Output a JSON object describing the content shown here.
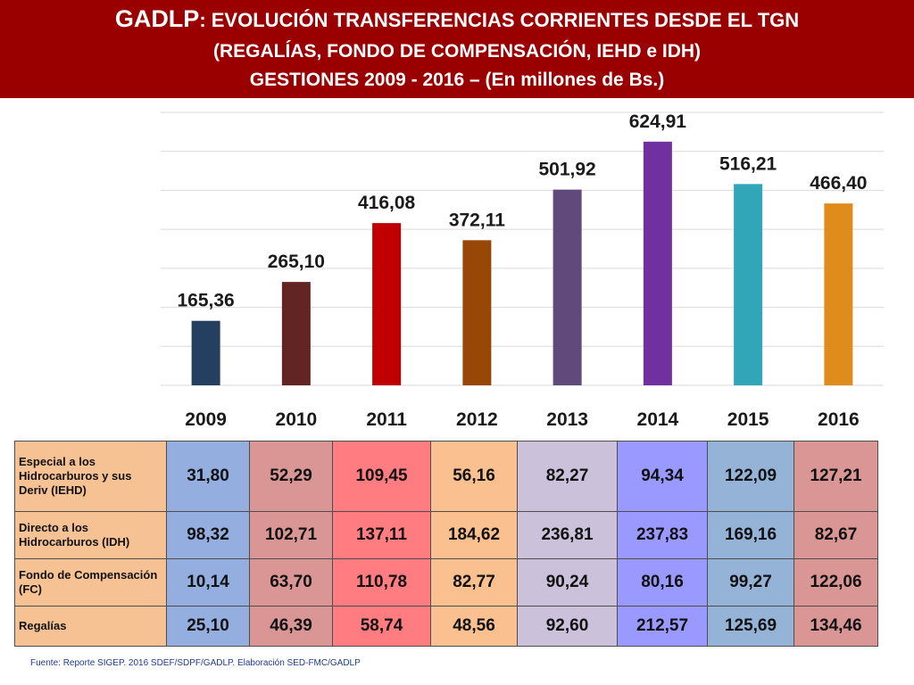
{
  "header": {
    "title_prefix": "GADLP",
    "title_rest": ": EVOLUCIÓN TRANSFERENCIAS CORRIENTES DESDE EL TGN",
    "line2": "(REGALÍAS, FONDO DE COMPENSACIÓN, IEHD e IDH)",
    "line3": "GESTIONES 2009 - 2016 – (En  millones de Bs.)",
    "background": "#9b0000"
  },
  "chart_data": {
    "type": "bar",
    "title": "",
    "xlabel": "",
    "ylabel": "",
    "categories": [
      "2009",
      "2010",
      "2011",
      "2012",
      "2013",
      "2014",
      "2015",
      "2016"
    ],
    "values": [
      165.36,
      265.1,
      416.08,
      372.11,
      501.92,
      624.91,
      516.21,
      466.4
    ],
    "value_labels": [
      "165,36",
      "265,10",
      "416,08",
      "372,11",
      "501,92",
      "624,91",
      "516,21",
      "466,40"
    ],
    "colors": [
      "#243f60",
      "#632523",
      "#c00000",
      "#974706",
      "#604a7b",
      "#7030a0",
      "#31a6b8",
      "#e08c1c"
    ],
    "ylim": [
      0,
      700
    ],
    "grid": true,
    "legend": "none"
  },
  "table": {
    "rows": [
      {
        "label": "Especial a los Hidrocarburos y sus Deriv (IEHD)",
        "values": [
          "31,80",
          "52,29",
          "109,45",
          "56,16",
          "82,27",
          "94,34",
          "122,09",
          "127,21"
        ]
      },
      {
        "label": "Directo a los Hidrocarburos (IDH)",
        "values": [
          "98,32",
          "102,71",
          "137,11",
          "184,62",
          "236,81",
          "237,83",
          "169,16",
          "82,67"
        ]
      },
      {
        "label": "Fondo de Compensación  (FC)",
        "values": [
          "10,14",
          "63,70",
          "110,78",
          "82,77",
          "90,24",
          "80,16",
          "99,27",
          "122,06"
        ]
      },
      {
        "label": "Regalías",
        "values": [
          "25,10",
          "46,39",
          "58,74",
          "48,56",
          "92,60",
          "212,57",
          "125,69",
          "134,46"
        ]
      }
    ],
    "column_colors": [
      "#94aee0",
      "#d99694",
      "#ff7c80",
      "#fac090",
      "#ccc1da",
      "#9999ff",
      "#95b3d7",
      "#d99694"
    ],
    "label_color": "#f6c294"
  },
  "source": "Fuente: Reporte  SIGEP. 2016 SDEF/SDPF/GADLP. Elaboración SED-FMC/GADLP"
}
